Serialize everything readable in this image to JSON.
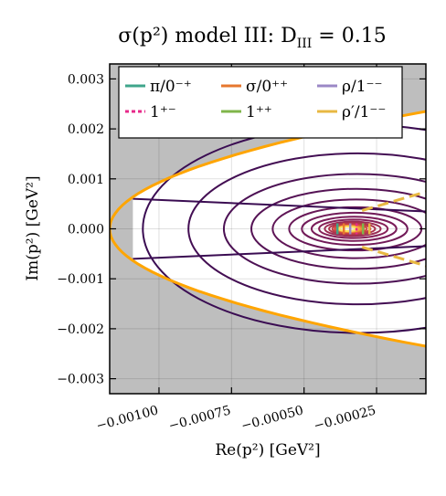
{
  "chart_data": {
    "type": "contour",
    "title": "σ(p²) model III: D_III = 0.15",
    "title_parts": {
      "main": "σ(p²) model III: D",
      "sub": "III",
      "tail": " = 0.15"
    },
    "xlabel": "Re(p²) [GeV²]",
    "ylabel": "Im(p²) [GeV²]",
    "xlim": [
      -0.00117,
      -8e-05
    ],
    "ylim": [
      -0.0033,
      0.0033
    ],
    "x_ticks": [
      -0.001,
      -0.00075,
      -0.0005,
      -0.00025
    ],
    "x_tick_labels": [
      "−0.00100",
      "−0.00075",
      "−0.00050",
      "−0.00025"
    ],
    "y_ticks": [
      0.003,
      0.002,
      0.001,
      0.0,
      -0.001,
      -0.002,
      -0.003
    ],
    "y_tick_labels": [
      "0.003",
      "0.002",
      "0.001",
      "0.000",
      "−0.001",
      "−0.002",
      "−0.003"
    ],
    "grid": true,
    "legend_position": "top",
    "legend": [
      {
        "label": "π/0⁻⁺",
        "color": "#3fa58b",
        "style": "solid"
      },
      {
        "label": "σ/0⁺⁺",
        "color": "#e6772e",
        "style": "solid"
      },
      {
        "label": "ρ/1⁻⁻",
        "color": "#9b88c6",
        "style": "solid"
      },
      {
        "label": "1⁺⁻",
        "color": "#e7298a",
        "style": "dashed"
      },
      {
        "label": "1⁺⁺",
        "color": "#7fb54a",
        "style": "solid"
      },
      {
        "label": "ρ′/1⁻⁻",
        "color": "#e8b842",
        "style": "solid"
      }
    ],
    "boundary": {
      "color": "#ffa500",
      "vertex": [
        -0.00117,
        0.0
      ],
      "upper_right": [
        -8e-05,
        0.00235
      ],
      "lower_right": [
        -8e-05,
        -0.00235
      ]
    },
    "contour_center": [
      -0.00035,
      0.0
    ],
    "contour_levels": 18,
    "excluded_region_color": "#bebebe"
  }
}
